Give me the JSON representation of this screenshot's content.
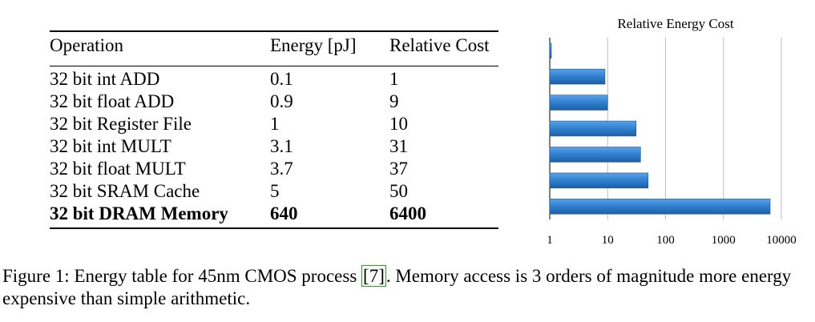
{
  "table": {
    "headers": [
      "Operation",
      "Energy [pJ]",
      "Relative Cost"
    ],
    "rows": [
      {
        "operation": "32 bit int ADD",
        "energy": "0.1",
        "relative": "1",
        "bold": false
      },
      {
        "operation": "32 bit float ADD",
        "energy": "0.9",
        "relative": "9",
        "bold": false
      },
      {
        "operation": "32 bit Register File",
        "energy": "1",
        "relative": "10",
        "bold": false
      },
      {
        "operation": "32 bit int MULT",
        "energy": "3.1",
        "relative": "31",
        "bold": false
      },
      {
        "operation": "32 bit float MULT",
        "energy": "3.7",
        "relative": "37",
        "bold": false
      },
      {
        "operation": "32 bit SRAM Cache",
        "energy": "5",
        "relative": "50",
        "bold": false
      },
      {
        "operation": "32 bit DRAM Memory",
        "energy": "640",
        "relative": "6400",
        "bold": true
      }
    ]
  },
  "chart_data": {
    "type": "bar",
    "orientation": "horizontal",
    "title": "Relative Energy Cost",
    "categories": [
      "32 bit int ADD",
      "32 bit float ADD",
      "32 bit Register File",
      "32 bit int MULT",
      "32 bit float MULT",
      "32 bit SRAM Cache",
      "32 bit DRAM Memory"
    ],
    "values": [
      1,
      9,
      10,
      31,
      37,
      50,
      6400
    ],
    "xscale": "log",
    "xlim": [
      1,
      10000
    ],
    "xticks": [
      1,
      10,
      100,
      1000,
      10000
    ],
    "xtick_labels": [
      "1",
      "10",
      "100",
      "1000",
      "10000"
    ],
    "grid": true,
    "legend": "none",
    "bar_color": "#2f7fd0"
  },
  "caption": {
    "before": "Figure 1: Energy table for 45nm CMOS process ",
    "ref": "[7]",
    "after": ". Memory access is 3 orders of magnitude more energy expensive than simple arithmetic."
  }
}
